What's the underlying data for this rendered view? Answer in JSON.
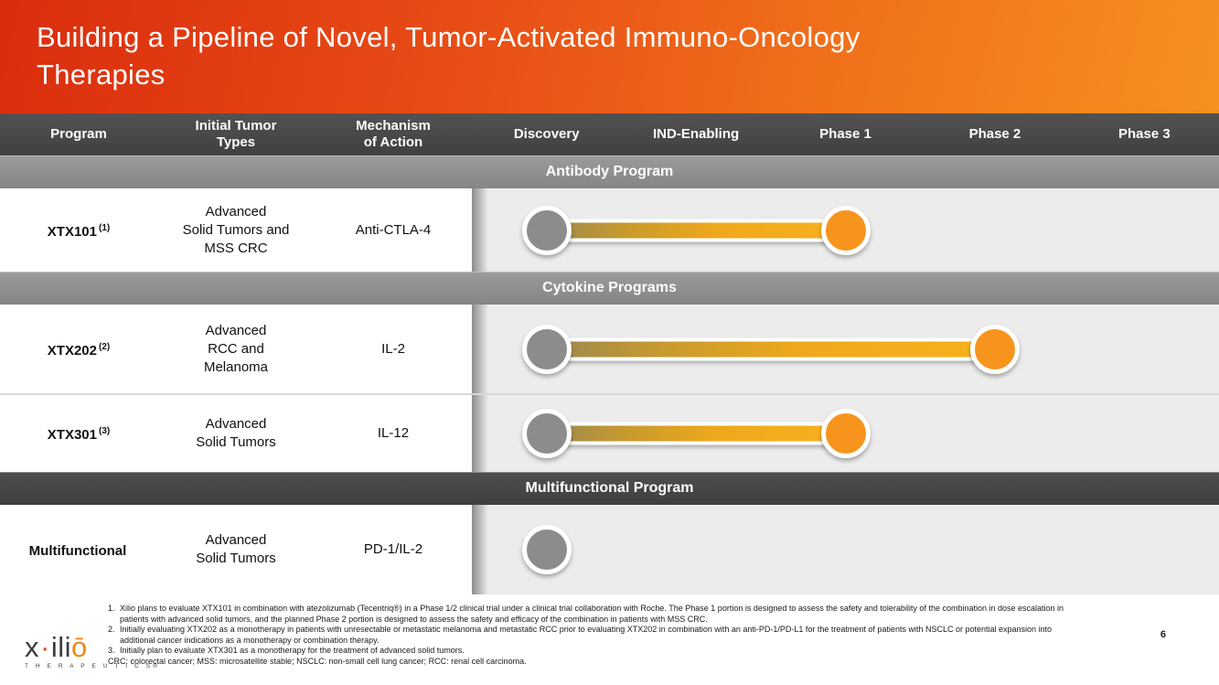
{
  "slide": {
    "title": "Building a Pipeline of Novel, Tumor-Activated Immuno-Oncology\nTherapies",
    "page_number": "6"
  },
  "colors": {
    "banner_gradient_left": "#da2c0e",
    "banner_gradient_right": "#f5911f",
    "header_dark": "#454545",
    "band_gray": "#8e8e8e",
    "band_dark": "#454545",
    "pipeline_background": "#ececec",
    "discovery_marker_gray": "#8c8c8c",
    "phase_marker_orange": "#f7941d",
    "bar_gradient_start": "#9e8950",
    "bar_gradient_end": "#f8b11d"
  },
  "table": {
    "left_headers": [
      "Program",
      "Initial Tumor\nTypes",
      "Mechanism\nof Action"
    ],
    "stage_headers": [
      "Discovery",
      "IND-Enabling",
      "Phase 1",
      "Phase 2",
      "Phase 3"
    ],
    "sections": [
      {
        "label": "Antibody Program"
      },
      {
        "label": "Cytokine Programs"
      },
      {
        "label": "Multifunctional Program"
      }
    ],
    "rows": [
      {
        "program": "XTX101",
        "ref": "(1)",
        "tumor_types": "Advanced\nSolid Tumors and\nMSS CRC",
        "mechanism": "Anti-CTLA-4",
        "bar": {
          "start": 0,
          "end": 2
        }
      },
      {
        "program": "XTX202",
        "ref": "(2)",
        "tumor_types": "Advanced\nRCC and\nMelanoma",
        "mechanism": "IL-2",
        "bar": {
          "start": 0,
          "end": 3
        }
      },
      {
        "program": "XTX301",
        "ref": "(3)",
        "tumor_types": "Advanced\nSolid Tumors",
        "mechanism": "IL-12",
        "bar": {
          "start": 0,
          "end": 2
        }
      },
      {
        "program": "Multifunctional",
        "ref": "",
        "tumor_types": "Advanced\nSolid Tumors",
        "mechanism": "PD-1/IL-2",
        "bar": {
          "start": 0,
          "end": null
        }
      }
    ]
  },
  "footnotes": [
    {
      "num": "1.",
      "text": "Xilio plans to evaluate XTX101 in combination with atezolizumab (Tecentriq®) in a Phase 1/2 clinical trial under a clinical trial collaboration with Roche. The Phase 1 portion is designed to assess the safety and tolerability of the combination in dose escalation in patients with advanced solid tumors, and the planned Phase 2 portion is designed to assess the safety and efficacy of the combination in patients with MSS CRC."
    },
    {
      "num": "2.",
      "text": "Initially evaluating XTX202 as a monotherapy in patients with unresectable or metastatic melanoma and metastatic RCC prior to evaluating XTX202 in combination with an anti-PD-1/PD-L1 for the treatment of patients with NSCLC or potential expansion into additional cancer indications as a monotherapy or combination therapy."
    },
    {
      "num": "3.",
      "text": "Initially plan to evaluate XTX301 as a monotherapy for the treatment of advanced solid tumors."
    }
  ],
  "abbreviations": "CRC: colorectal cancer; MSS: microsatellite stable; NSCLC: non-small cell lung cancer; RCC: renal cell carcinoma.",
  "logo": {
    "part_x": "x",
    "part_dot": "·",
    "part_ili": "ili",
    "part_o": "ō",
    "subtext": "T H E R A P E U T I C S",
    "registered": "®"
  }
}
